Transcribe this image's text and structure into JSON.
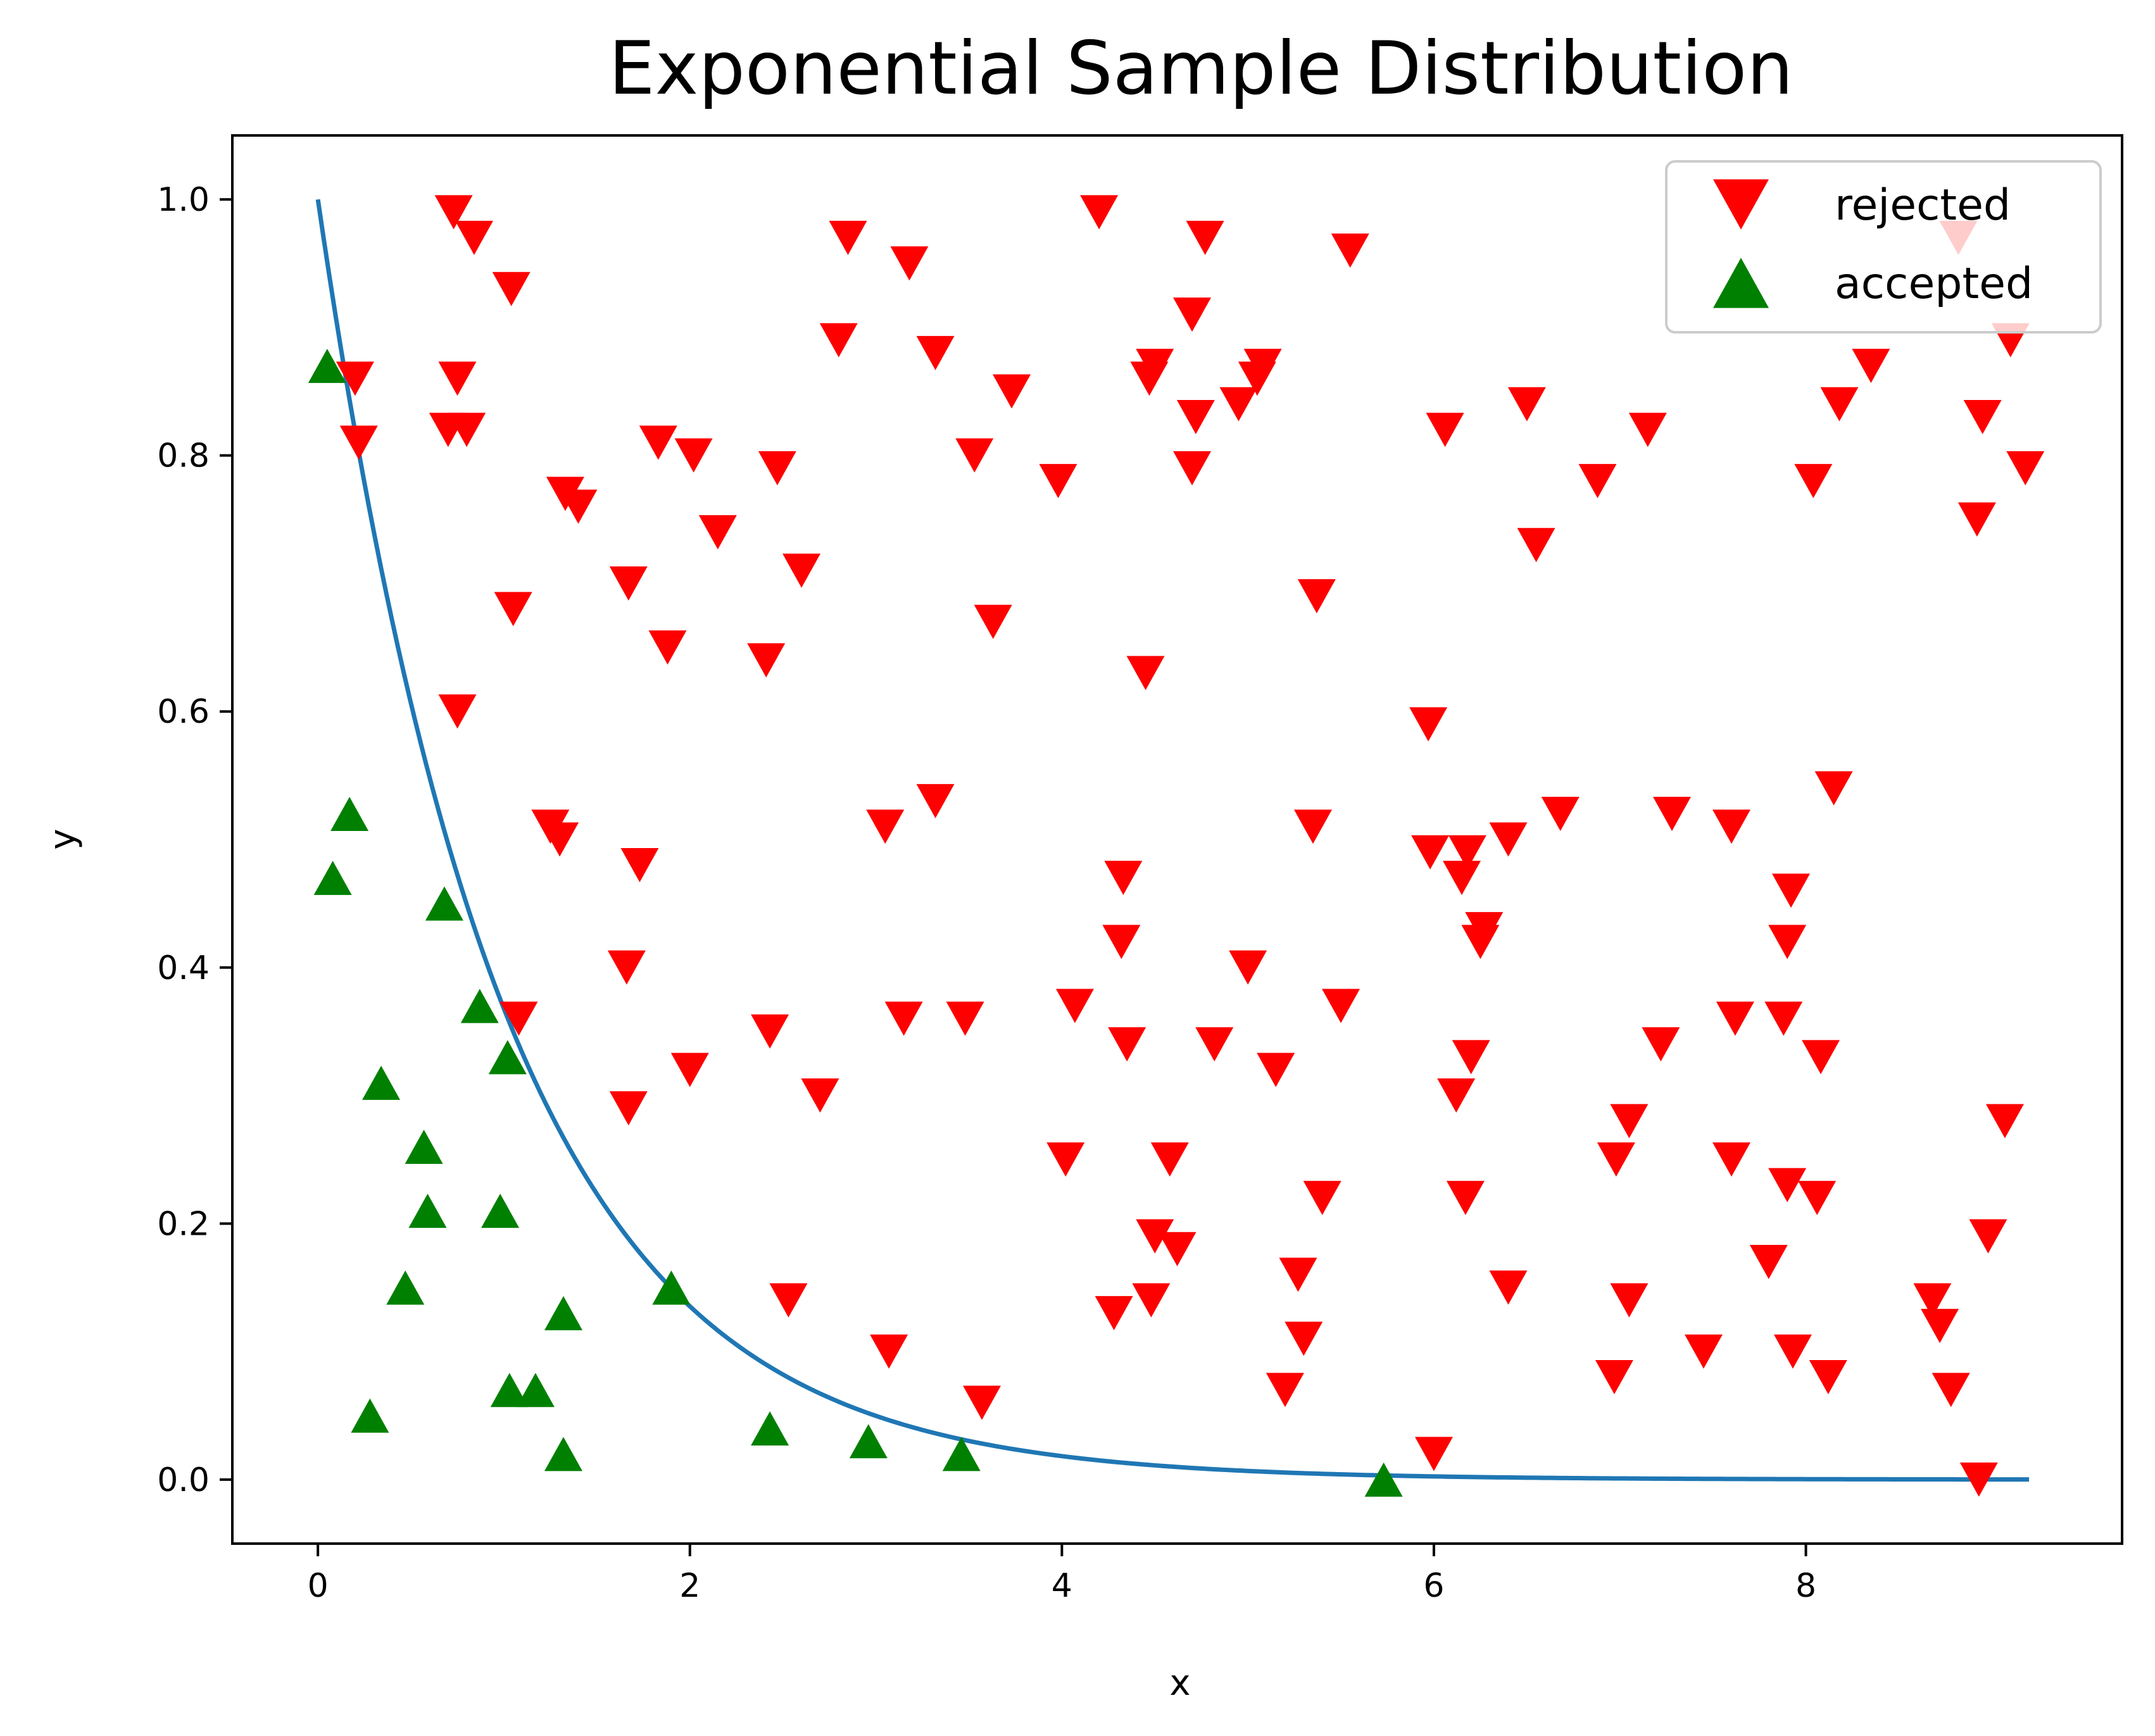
{
  "chart_data": {
    "type": "scatter",
    "title": "Exponential Sample Distribution",
    "xlabel": "x",
    "ylabel": "y",
    "xlim": [
      -0.46,
      9.7
    ],
    "ylim": [
      -0.05,
      1.05
    ],
    "xticks": [
      0,
      2,
      4,
      6,
      8
    ],
    "yticks": [
      0.0,
      0.2,
      0.4,
      0.6,
      0.8,
      1.0
    ],
    "xtick_labels": [
      "0",
      "2",
      "4",
      "6",
      "8"
    ],
    "ytick_labels": [
      "0.0",
      "0.2",
      "0.4",
      "0.6",
      "0.8",
      "1.0"
    ],
    "grid": false,
    "legend_position": "top-right",
    "curve": {
      "function": "exp(-x)",
      "x_range": [
        0,
        9.2
      ],
      "color": "#1f77b4"
    },
    "series": [
      {
        "name": "rejected",
        "marker": "triangle-down",
        "color": "#ff0000",
        "points": [
          [
            0.73,
            0.99
          ],
          [
            0.84,
            0.97
          ],
          [
            1.04,
            0.93
          ],
          [
            0.2,
            0.86
          ],
          [
            0.22,
            0.81
          ],
          [
            0.75,
            0.86
          ],
          [
            0.7,
            0.82
          ],
          [
            0.8,
            0.82
          ],
          [
            1.05,
            0.68
          ],
          [
            0.75,
            0.6
          ],
          [
            1.08,
            0.36
          ],
          [
            1.25,
            0.51
          ],
          [
            1.3,
            0.5
          ],
          [
            1.33,
            0.77
          ],
          [
            1.4,
            0.76
          ],
          [
            1.67,
            0.7
          ],
          [
            1.73,
            0.48
          ],
          [
            1.66,
            0.4
          ],
          [
            1.67,
            0.29
          ],
          [
            1.83,
            0.81
          ],
          [
            1.88,
            0.65
          ],
          [
            2.02,
            0.8
          ],
          [
            2.15,
            0.74
          ],
          [
            2.0,
            0.32
          ],
          [
            2.41,
            0.64
          ],
          [
            2.47,
            0.79
          ],
          [
            2.6,
            0.71
          ],
          [
            2.43,
            0.35
          ],
          [
            2.7,
            0.3
          ],
          [
            2.53,
            0.14
          ],
          [
            2.85,
            0.97
          ],
          [
            2.8,
            0.89
          ],
          [
            3.18,
            0.95
          ],
          [
            3.32,
            0.88
          ],
          [
            3.05,
            0.51
          ],
          [
            3.32,
            0.53
          ],
          [
            3.15,
            0.36
          ],
          [
            3.48,
            0.36
          ],
          [
            3.07,
            0.1
          ],
          [
            3.57,
            0.06
          ],
          [
            3.53,
            0.8
          ],
          [
            3.73,
            0.85
          ],
          [
            3.63,
            0.67
          ],
          [
            3.98,
            0.78
          ],
          [
            4.02,
            0.25
          ],
          [
            4.07,
            0.37
          ],
          [
            4.2,
            0.99
          ],
          [
            4.28,
            0.13
          ],
          [
            4.33,
            0.47
          ],
          [
            4.32,
            0.42
          ],
          [
            4.35,
            0.34
          ],
          [
            4.47,
            0.86
          ],
          [
            4.5,
            0.87
          ],
          [
            4.45,
            0.63
          ],
          [
            4.5,
            0.19
          ],
          [
            4.48,
            0.14
          ],
          [
            4.58,
            0.25
          ],
          [
            4.62,
            0.18
          ],
          [
            4.77,
            0.97
          ],
          [
            4.7,
            0.91
          ],
          [
            4.72,
            0.83
          ],
          [
            4.7,
            0.79
          ],
          [
            4.82,
            0.34
          ],
          [
            4.95,
            0.84
          ],
          [
            5.08,
            0.87
          ],
          [
            5.05,
            0.86
          ],
          [
            5.0,
            0.4
          ],
          [
            5.15,
            0.32
          ],
          [
            5.2,
            0.07
          ],
          [
            5.27,
            0.16
          ],
          [
            5.3,
            0.11
          ],
          [
            5.37,
            0.69
          ],
          [
            5.35,
            0.51
          ],
          [
            5.4,
            0.22
          ],
          [
            5.5,
            0.37
          ],
          [
            5.55,
            0.96
          ],
          [
            5.97,
            0.59
          ],
          [
            5.98,
            0.49
          ],
          [
            6.06,
            0.82
          ],
          [
            6.15,
            0.47
          ],
          [
            6.18,
            0.49
          ],
          [
            6.25,
            0.42
          ],
          [
            6.27,
            0.43
          ],
          [
            6.2,
            0.33
          ],
          [
            6.12,
            0.3
          ],
          [
            6.17,
            0.22
          ],
          [
            6.0,
            0.02
          ],
          [
            6.4,
            0.5
          ],
          [
            6.5,
            0.84
          ],
          [
            6.55,
            0.73
          ],
          [
            6.4,
            0.15
          ],
          [
            6.68,
            0.52
          ],
          [
            6.88,
            0.78
          ],
          [
            6.98,
            0.25
          ],
          [
            6.97,
            0.08
          ],
          [
            7.05,
            0.28
          ],
          [
            7.05,
            0.14
          ],
          [
            7.15,
            0.82
          ],
          [
            7.22,
            0.34
          ],
          [
            7.28,
            0.52
          ],
          [
            7.45,
            0.1
          ],
          [
            7.6,
            0.51
          ],
          [
            7.62,
            0.36
          ],
          [
            7.6,
            0.25
          ],
          [
            7.8,
            0.17
          ],
          [
            7.88,
            0.36
          ],
          [
            7.92,
            0.46
          ],
          [
            7.9,
            0.42
          ],
          [
            7.9,
            0.23
          ],
          [
            7.93,
            0.1
          ],
          [
            8.04,
            0.78
          ],
          [
            8.08,
            0.33
          ],
          [
            8.06,
            0.22
          ],
          [
            8.12,
            0.08
          ],
          [
            8.15,
            0.54
          ],
          [
            8.18,
            0.84
          ],
          [
            8.35,
            0.87
          ],
          [
            8.68,
            0.14
          ],
          [
            8.72,
            0.12
          ],
          [
            8.78,
            0.07
          ],
          [
            8.82,
            0.97
          ],
          [
            8.92,
            0.75
          ],
          [
            8.95,
            0.83
          ],
          [
            8.98,
            0.19
          ],
          [
            8.93,
            0.0
          ],
          [
            9.1,
            0.89
          ],
          [
            9.18,
            0.79
          ],
          [
            9.07,
            0.28
          ]
        ]
      },
      {
        "name": "accepted",
        "marker": "triangle-up",
        "color": "#008000",
        "points": [
          [
            0.05,
            0.87
          ],
          [
            0.17,
            0.52
          ],
          [
            0.08,
            0.47
          ],
          [
            0.34,
            0.31
          ],
          [
            0.57,
            0.26
          ],
          [
            0.59,
            0.21
          ],
          [
            0.47,
            0.15
          ],
          [
            0.28,
            0.05
          ],
          [
            0.68,
            0.45
          ],
          [
            0.87,
            0.37
          ],
          [
            1.02,
            0.33
          ],
          [
            0.98,
            0.21
          ],
          [
            1.03,
            0.07
          ],
          [
            1.17,
            0.07
          ],
          [
            1.32,
            0.13
          ],
          [
            1.32,
            0.02
          ],
          [
            1.9,
            0.15
          ],
          [
            2.43,
            0.04
          ],
          [
            2.96,
            0.03
          ],
          [
            3.46,
            0.02
          ],
          [
            5.73,
            0.0
          ]
        ]
      }
    ]
  }
}
